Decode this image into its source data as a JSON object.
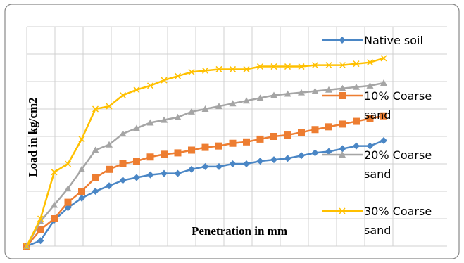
{
  "chart_data": {
    "type": "line",
    "x_label": "Penetration in mm",
    "y_label": "Load in kg/cm2",
    "x": [
      0,
      1,
      2,
      3,
      4,
      5,
      6,
      7,
      8,
      9,
      10,
      11,
      12,
      13,
      14,
      15,
      16,
      17,
      18,
      19,
      20,
      21,
      22,
      23,
      24,
      25,
      26
    ],
    "xlim": [
      0,
      26
    ],
    "ylim": [
      0,
      8
    ],
    "grid": true,
    "legend": "right",
    "series": [
      {
        "name": "Native soil",
        "color": "#4a86c5",
        "marker": "diamond",
        "values": [
          0,
          0.2,
          0.95,
          1.4,
          1.75,
          2.0,
          2.2,
          2.4,
          2.5,
          2.6,
          2.65,
          2.65,
          2.8,
          2.9,
          2.9,
          3.0,
          3.0,
          3.1,
          3.15,
          3.2,
          3.3,
          3.4,
          3.45,
          3.55,
          3.65,
          3.65,
          3.85
        ]
      },
      {
        "name": "10% Coarse sand",
        "color": "#ed7d31",
        "marker": "square",
        "values": [
          0,
          0.6,
          1.0,
          1.6,
          2.0,
          2.5,
          2.8,
          3.0,
          3.1,
          3.25,
          3.35,
          3.4,
          3.5,
          3.6,
          3.65,
          3.75,
          3.8,
          3.9,
          4.0,
          4.05,
          4.15,
          4.25,
          4.35,
          4.45,
          4.55,
          4.65,
          4.75
        ]
      },
      {
        "name": "20% Coarse sand",
        "color": "#a5a5a5",
        "marker": "triangle",
        "values": [
          0,
          0.9,
          1.5,
          2.1,
          2.8,
          3.5,
          3.7,
          4.1,
          4.3,
          4.5,
          4.6,
          4.7,
          4.9,
          5.0,
          5.1,
          5.2,
          5.3,
          5.4,
          5.5,
          5.55,
          5.6,
          5.65,
          5.7,
          5.75,
          5.8,
          5.85,
          5.95
        ]
      },
      {
        "name": "30% Coarse sand",
        "color": "#ffc000",
        "marker": "x",
        "values": [
          0,
          1.0,
          2.7,
          3.0,
          3.9,
          5.0,
          5.1,
          5.5,
          5.7,
          5.85,
          6.05,
          6.2,
          6.35,
          6.4,
          6.45,
          6.45,
          6.45,
          6.55,
          6.55,
          6.55,
          6.55,
          6.6,
          6.6,
          6.6,
          6.65,
          6.7,
          6.85
        ]
      }
    ]
  }
}
